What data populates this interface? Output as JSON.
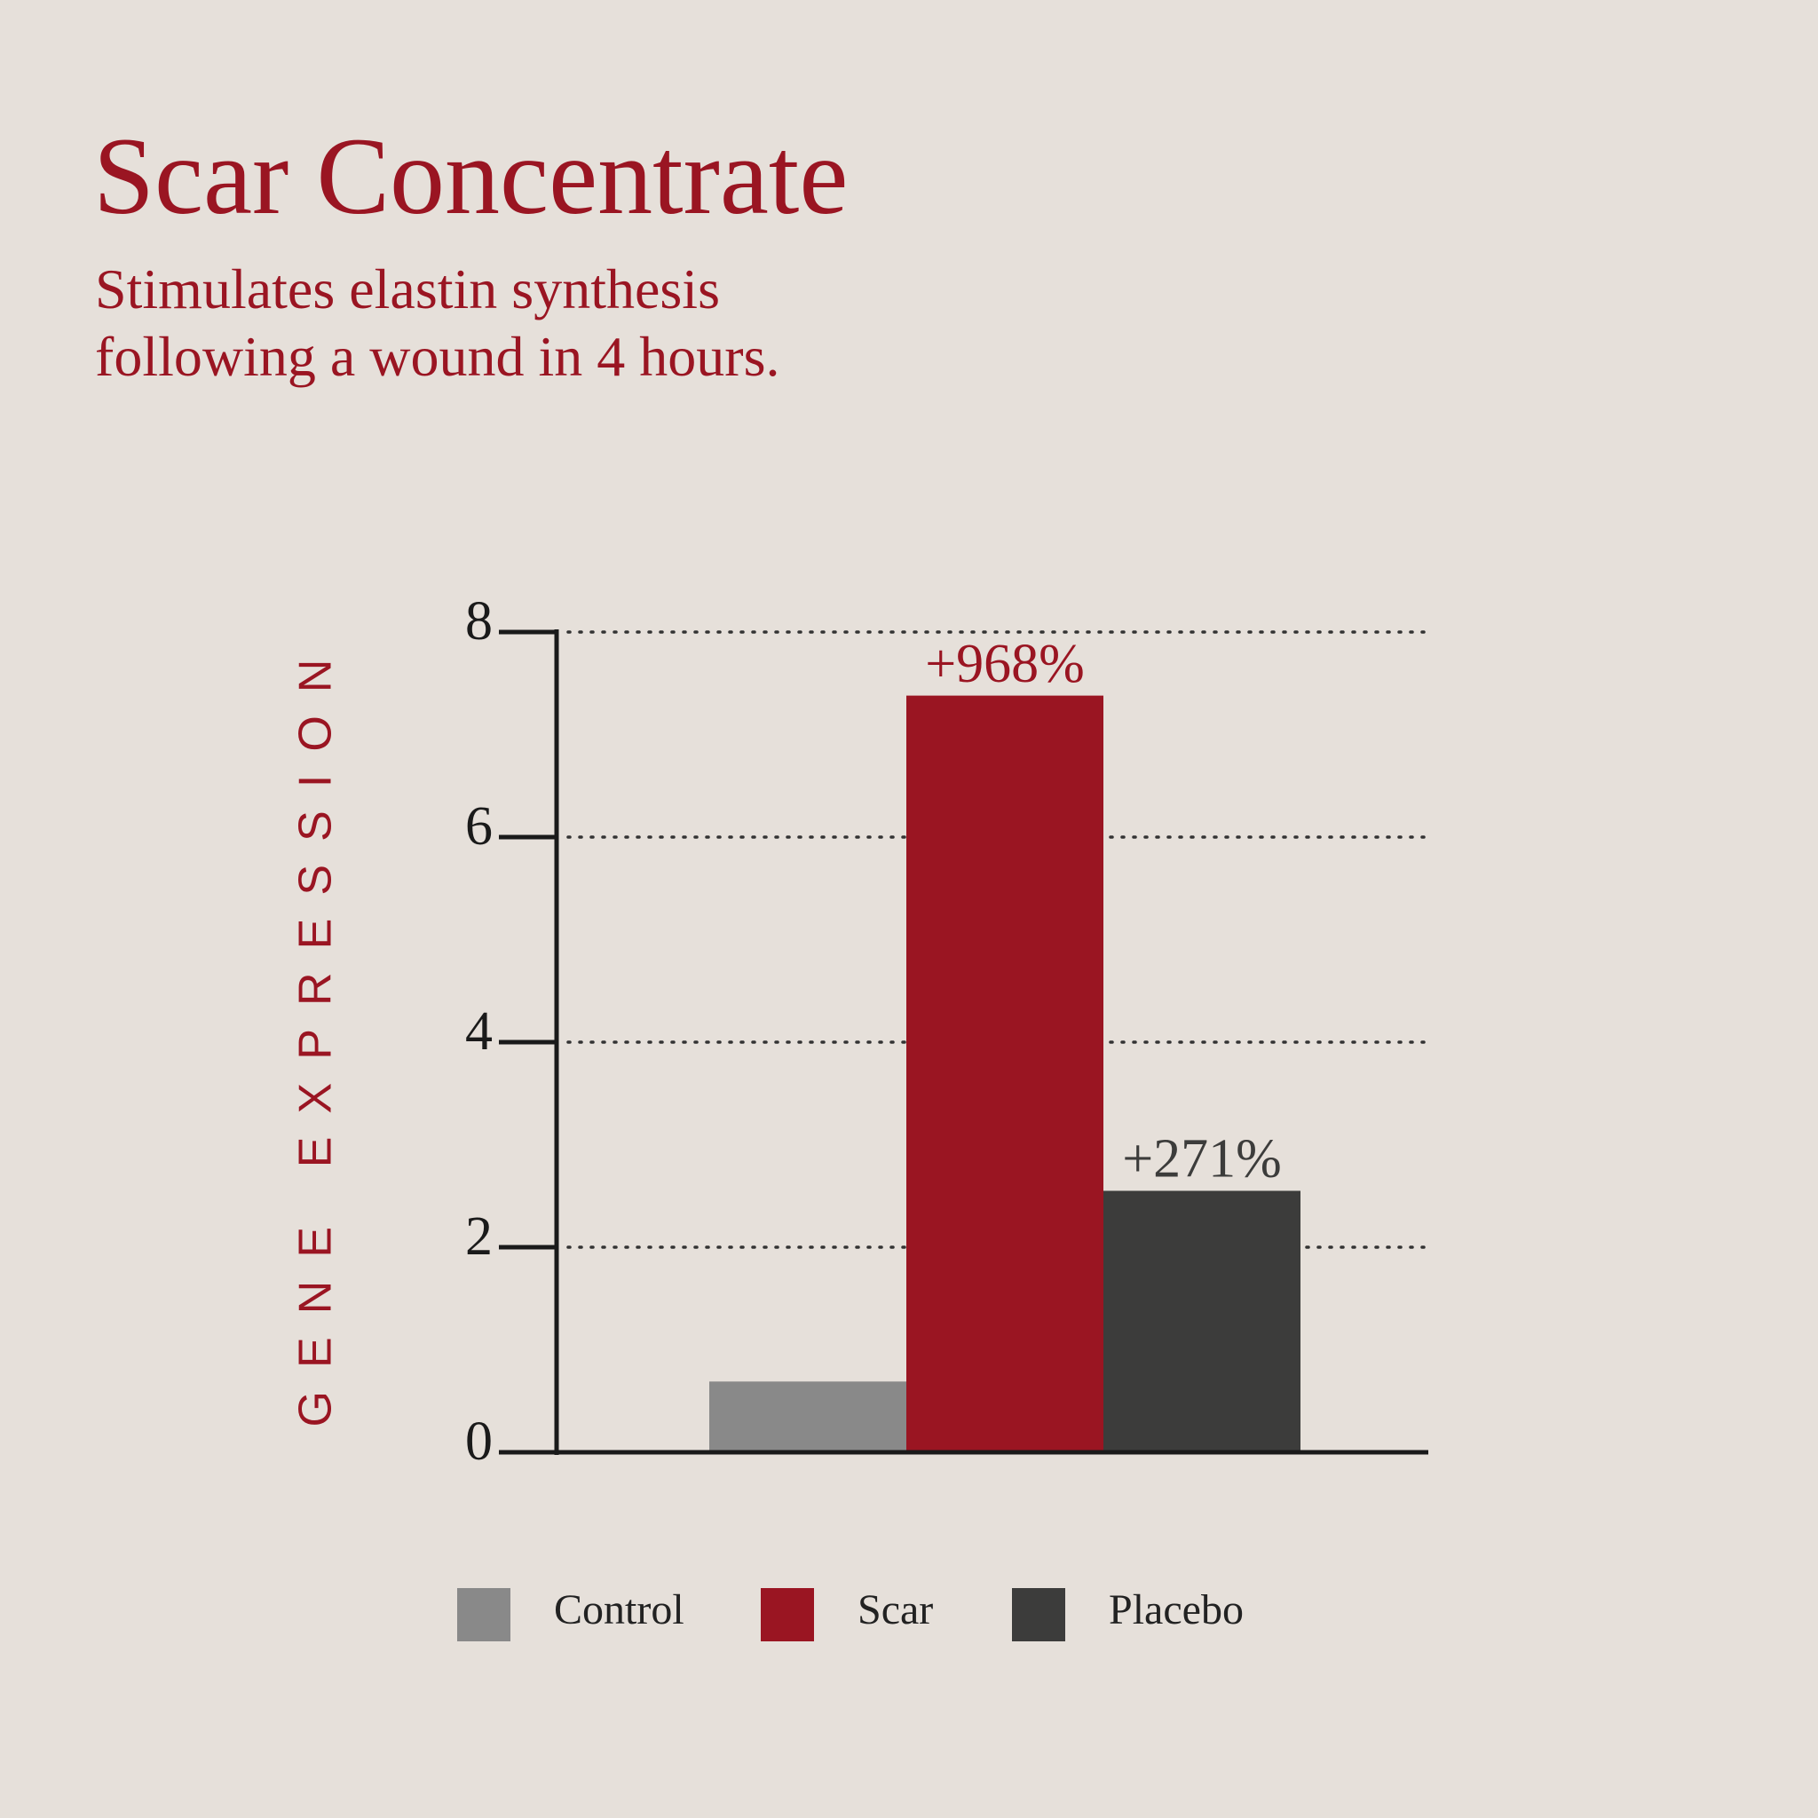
{
  "chart_data": {
    "type": "bar",
    "title": "Scar Concentrate",
    "subtitle": "Stimulates elastin synthesis following a wound in 4 hours.",
    "y_label": "GENE EXPRESSION",
    "categories": [
      null
    ],
    "series": [
      {
        "name": "Control",
        "color": "#898989",
        "values": [
          0.69
        ]
      },
      {
        "name": "Scar",
        "color": "#9a1522",
        "values": [
          7.38
        ],
        "annotation": "+968%"
      },
      {
        "name": "Placebo",
        "color": "#3c3c3b",
        "values": [
          2.55
        ],
        "annotation": "+271%"
      }
    ],
    "ylim": [
      0,
      8
    ],
    "yticks": [
      0,
      2,
      4,
      6,
      8
    ],
    "grid": true
  }
}
